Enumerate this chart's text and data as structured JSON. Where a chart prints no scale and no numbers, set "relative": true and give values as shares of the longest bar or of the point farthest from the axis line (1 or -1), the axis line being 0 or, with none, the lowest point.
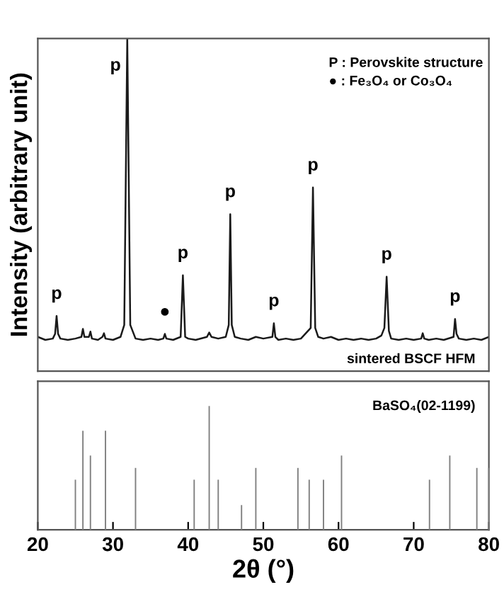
{
  "chart_data": [
    {
      "type": "line",
      "relative": true,
      "ylabel": "Intensity (arbitrary unit)",
      "xlim": [
        20,
        80
      ],
      "tick_labels": false,
      "legend": false,
      "grid": false,
      "series": [
        {
          "color": "#1a1a1a",
          "x": [
            20,
            21,
            22,
            22.3,
            22.5,
            22.7,
            23,
            24,
            25,
            25.8,
            26,
            26.2,
            26.8,
            27,
            27.2,
            28,
            28.6,
            28.8,
            29,
            30,
            31,
            31.5,
            31.9,
            32.3,
            33,
            34,
            35,
            36,
            36.7,
            36.9,
            37.1,
            38,
            39,
            39.3,
            39.6,
            40,
            41,
            42.5,
            42.8,
            43.1,
            44,
            45,
            45.4,
            45.6,
            45.8,
            46.2,
            47,
            48,
            49,
            50,
            51.2,
            51.4,
            51.6,
            52,
            53,
            54,
            55,
            56.3,
            56.6,
            56.9,
            57.3,
            58,
            59,
            60,
            61,
            62,
            63,
            64,
            65,
            65.7,
            66.1,
            66.4,
            66.7,
            67,
            68,
            69,
            70,
            71,
            71.2,
            71.4,
            72,
            73,
            74,
            75.3,
            75.5,
            75.7,
            76,
            77,
            78,
            79,
            80
          ],
          "values": [
            0.103,
            0.094,
            0.098,
            0.112,
            0.166,
            0.112,
            0.098,
            0.094,
            0.098,
            0.103,
            0.127,
            0.103,
            0.103,
            0.119,
            0.098,
            0.094,
            0.103,
            0.114,
            0.098,
            0.094,
            0.103,
            0.139,
            1,
            0.139,
            0.098,
            0.094,
            0.098,
            0.094,
            0.098,
            0.112,
            0.098,
            0.094,
            0.103,
            0.288,
            0.103,
            0.098,
            0.094,
            0.103,
            0.116,
            0.103,
            0.098,
            0.103,
            0.139,
            0.472,
            0.139,
            0.103,
            0.098,
            0.094,
            0.103,
            0.098,
            0.103,
            0.144,
            0.103,
            0.094,
            0.098,
            0.094,
            0.098,
            0.13,
            0.552,
            0.13,
            0.103,
            0.098,
            0.103,
            0.094,
            0.098,
            0.094,
            0.098,
            0.094,
            0.098,
            0.107,
            0.13,
            0.284,
            0.121,
            0.098,
            0.094,
            0.098,
            0.094,
            0.098,
            0.114,
            0.098,
            0.094,
            0.098,
            0.094,
            0.103,
            0.157,
            0.112,
            0.098,
            0.094,
            0.098,
            0.094,
            0.103
          ]
        }
      ],
      "annotations": [
        {
          "text": "p",
          "x": 22.5,
          "y": 0.166
        },
        {
          "text": "p",
          "x": 31.9,
          "y": 1
        },
        {
          "text": "p",
          "x": 39.3,
          "y": 0.288
        },
        {
          "text": "p",
          "x": 45.6,
          "y": 0.472
        },
        {
          "text": "p",
          "x": 51.4,
          "y": 0.144
        },
        {
          "text": "p",
          "x": 56.6,
          "y": 0.552
        },
        {
          "text": "p",
          "x": 66.4,
          "y": 0.284
        },
        {
          "text": "p",
          "x": 75.5,
          "y": 0.157
        },
        {
          "text": "●",
          "x": 36.9,
          "y": 0.112
        },
        "P : Perovskite structure",
        "● : Fe₃O₄ or Co₃O₄",
        "sintered BSCF HFM"
      ]
    },
    {
      "type": "bar",
      "relative": true,
      "xlim": [
        20,
        80
      ],
      "xticks": [
        20,
        30,
        40,
        50,
        60,
        70,
        80
      ],
      "xlabel": "2θ (°)",
      "tick_labels": "x",
      "legend": false,
      "grid": false,
      "x": [
        25,
        26,
        27,
        29,
        33,
        40.8,
        42.8,
        44,
        47.1,
        49,
        54.6,
        56.1,
        58,
        60.4,
        72.1,
        74.8,
        78.4,
        80
      ],
      "values": [
        0.405,
        0.8,
        0.6,
        0.8,
        0.5,
        0.405,
        1,
        0.405,
        0.2,
        0.5,
        0.5,
        0.405,
        0.405,
        0.6,
        0.405,
        0.6,
        0.5,
        0.5
      ],
      "color": "#808080",
      "annotations": [
        "BaSO₄(02-1199)"
      ]
    }
  ]
}
